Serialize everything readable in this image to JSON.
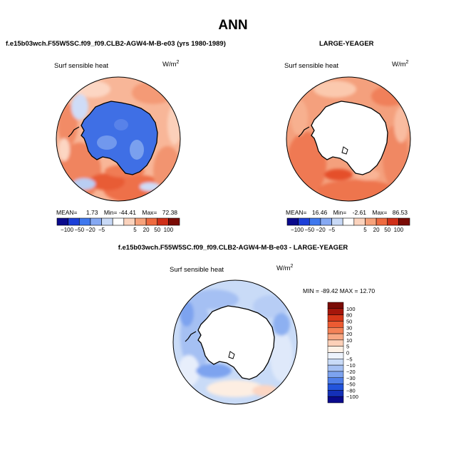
{
  "page": {
    "title": "ANN",
    "top_left_case": "f.e15b03wch.F55W5SC.f09_f09.CLB2-AGW4-M-B-e03 (yrs 1980-1989)",
    "top_right_case": "LARGE-YEAGER",
    "diff_case": "f.e15b03wch.F55W5SC.f09_f09.CLB2-AGW4-M-B-e03 - LARGE-YEAGER"
  },
  "panels": {
    "model": {
      "variable": "Surf sensible heat",
      "units": "W/m",
      "units_exp": "2",
      "mean_label": "MEAN=",
      "mean": "1.73",
      "min_label": "Min=",
      "min": "-44.41",
      "max_label": "Max=",
      "max": "72.38"
    },
    "obs": {
      "variable": "Surf sensible heat",
      "units": "W/m",
      "units_exp": "2",
      "mean_label": "MEAN=",
      "mean": "16.46",
      "min_label": "Min=",
      "min": "-2.61",
      "max_label": "Max=",
      "max": "86.53"
    },
    "diff": {
      "variable": "Surf sensible heat",
      "units": "W/m",
      "units_exp": "2",
      "minmax_text": "MIN = -89.42 MAX =  12.70"
    }
  },
  "colorbar_h": {
    "ticks": [
      "−100",
      "−50",
      "−20",
      "−5",
      "5",
      "20",
      "50",
      "100"
    ],
    "colors": [
      "#0a0a8c",
      "#1c3fd8",
      "#3f78ee",
      "#86a9f3",
      "#c8d9f6",
      "#ffffff",
      "#fbd3bd",
      "#f6a27b",
      "#ee6a3f",
      "#cf2f18",
      "#7a0b05"
    ]
  },
  "colorbar_v": {
    "ticks": [
      "100",
      "80",
      "50",
      "30",
      "20",
      "10",
      "5",
      "0",
      "−5",
      "−10",
      "−20",
      "−30",
      "−50",
      "−80",
      "−100"
    ],
    "colors": [
      "#7a0b05",
      "#a5160b",
      "#d63719",
      "#ec5b32",
      "#f48257",
      "#f8a884",
      "#fcd0b8",
      "#fdf1e6",
      "#edf3fd",
      "#c9dbf7",
      "#a5c0f3",
      "#7da3ef",
      "#4f7ee9",
      "#2354dc",
      "#1430b8",
      "#0a0a8c"
    ]
  }
}
